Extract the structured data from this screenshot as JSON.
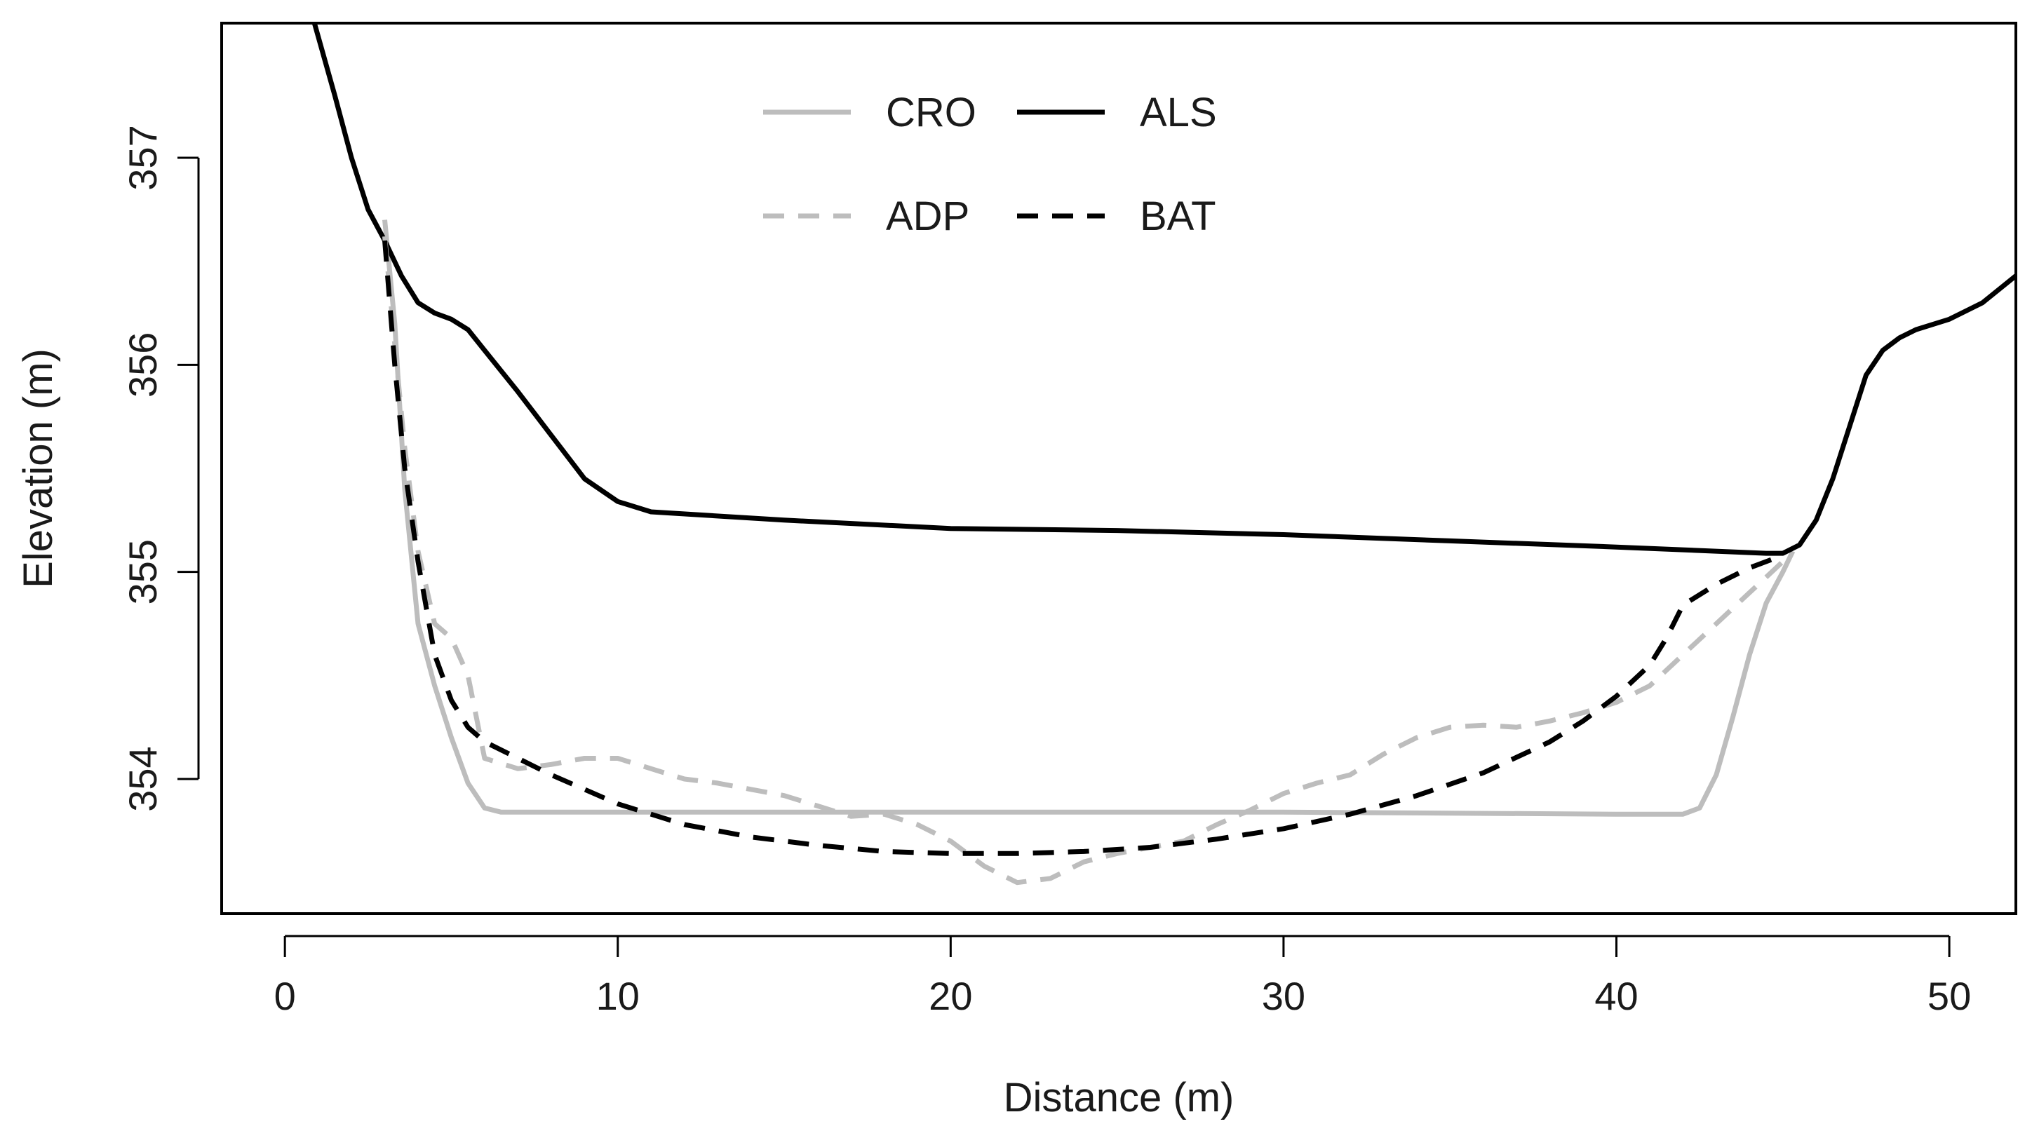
{
  "chart_data": {
    "type": "line",
    "title": "",
    "xlabel": "Distance (m)",
    "ylabel": "Elevation (m)",
    "xlim": [
      -1.9,
      52
    ],
    "ylim": [
      353.35,
      357.65
    ],
    "xticks": [
      0,
      10,
      20,
      30,
      40,
      50
    ],
    "yticks": [
      354,
      355,
      356,
      357
    ],
    "grid": false,
    "legend_position": "top-center",
    "series": [
      {
        "name": "CRO",
        "color": "#bdbdbd",
        "dash": "solid",
        "x": [
          3.0,
          3.3,
          3.6,
          4.0,
          4.5,
          5.0,
          5.5,
          6.0,
          6.5,
          10,
          20,
          30,
          40,
          41.5,
          42.0,
          42.5,
          43.0,
          43.5,
          44.0,
          44.5,
          45.0,
          45.3
        ],
        "y": [
          356.7,
          356.2,
          355.4,
          354.75,
          354.45,
          354.2,
          353.98,
          353.86,
          353.84,
          353.84,
          353.84,
          353.84,
          353.83,
          353.83,
          353.83,
          353.86,
          354.02,
          354.3,
          354.6,
          354.85,
          355.0,
          355.1
        ]
      },
      {
        "name": "ALS",
        "color": "#000000",
        "dash": "solid",
        "x": [
          0.8,
          1.5,
          2.0,
          2.5,
          3.0,
          3.5,
          4.0,
          4.5,
          5.0,
          5.5,
          6.0,
          7.0,
          8.0,
          9.0,
          10.0,
          11.0,
          15,
          20,
          25,
          30,
          35,
          40,
          44.5,
          45.0,
          45.5,
          46.0,
          46.5,
          47.0,
          47.5,
          48.0,
          48.5,
          49.0,
          50.0,
          51.0,
          52.0
        ],
        "y": [
          357.7,
          357.3,
          357.0,
          356.75,
          356.6,
          356.43,
          356.3,
          356.25,
          356.22,
          356.17,
          356.07,
          355.87,
          355.66,
          355.45,
          355.34,
          355.29,
          355.25,
          355.21,
          355.2,
          355.18,
          355.15,
          355.12,
          355.09,
          355.09,
          355.13,
          355.25,
          355.45,
          355.7,
          355.95,
          356.07,
          356.13,
          356.17,
          356.22,
          356.3,
          356.43
        ]
      },
      {
        "name": "ADP",
        "color": "#bdbdbd",
        "dash": "dashed",
        "x": [
          3.0,
          3.3,
          3.6,
          4.0,
          4.5,
          5.0,
          5.5,
          6.0,
          7.0,
          8.0,
          9.0,
          10.0,
          11.0,
          12.0,
          13.0,
          14.0,
          15.0,
          16.0,
          17.0,
          18.0,
          19.0,
          20.0,
          21.0,
          22.0,
          23.0,
          24.0,
          25.0,
          26.0,
          27.0,
          28.0,
          29.0,
          30.0,
          31.0,
          32.0,
          33.0,
          34.0,
          35.0,
          36.0,
          37.0,
          38.0,
          39.0,
          40.0,
          41.0,
          42.0,
          43.0,
          44.0,
          45.0
        ],
        "y": [
          356.62,
          356.1,
          355.6,
          355.1,
          354.75,
          354.68,
          354.5,
          354.1,
          354.05,
          354.07,
          354.1,
          354.1,
          354.05,
          354.0,
          353.98,
          353.95,
          353.92,
          353.87,
          353.82,
          353.83,
          353.78,
          353.7,
          353.58,
          353.5,
          353.52,
          353.6,
          353.64,
          353.67,
          353.7,
          353.78,
          353.85,
          353.93,
          353.98,
          354.02,
          354.12,
          354.2,
          354.25,
          354.26,
          354.25,
          354.28,
          354.32,
          354.37,
          354.45,
          354.6,
          354.75,
          354.9,
          355.05
        ]
      },
      {
        "name": "BAT",
        "color": "#000000",
        "dash": "dashed",
        "x": [
          3.0,
          3.3,
          3.6,
          4.0,
          4.5,
          5.0,
          5.5,
          6.0,
          7.0,
          8.0,
          9.0,
          10.0,
          12.0,
          14.0,
          16.0,
          18.0,
          20.0,
          22.0,
          24.0,
          26.0,
          28.0,
          30.0,
          32.0,
          34.0,
          36.0,
          38.0,
          39.0,
          40.0,
          41.0,
          41.5,
          42.0,
          43.0,
          44.0,
          45.0
        ],
        "y": [
          356.6,
          356.0,
          355.5,
          355.05,
          354.6,
          354.38,
          354.25,
          354.18,
          354.1,
          354.02,
          353.95,
          353.88,
          353.78,
          353.72,
          353.68,
          353.65,
          353.64,
          353.64,
          353.65,
          353.67,
          353.71,
          353.76,
          353.83,
          353.92,
          354.03,
          354.18,
          354.28,
          354.4,
          354.55,
          354.68,
          354.84,
          354.94,
          355.02,
          355.08
        ]
      }
    ]
  }
}
